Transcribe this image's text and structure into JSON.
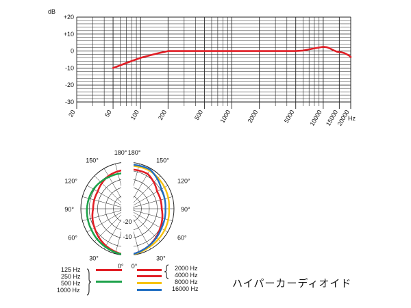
{
  "chart_data": [
    {
      "type": "line",
      "xscale": "log",
      "xlim": [
        20,
        20000
      ],
      "ylim": [
        -30,
        20
      ],
      "ylabel": "dB",
      "xunit": "Hz",
      "y_ticks": [
        "+20",
        "+10",
        "0",
        "-10",
        "-20",
        "-30"
      ],
      "x_ticks": [
        "20",
        "50",
        "100",
        "200",
        "500",
        "1000",
        "2000",
        "5000",
        "10000",
        "15000",
        "20000"
      ],
      "series": [
        {
          "color": "#e11f26",
          "x": [
            50,
            70,
            100,
            150,
            200,
            300,
            500,
            1000,
            2000,
            5000,
            6000,
            7000,
            8000,
            10000,
            11000,
            12000,
            13000,
            14000,
            15000,
            16000,
            17000,
            18000,
            19000,
            20000
          ],
          "y": [
            -10,
            -7,
            -4,
            -1.5,
            0,
            0,
            0,
            0,
            0,
            0,
            0.3,
            1,
            1.6,
            2.5,
            2.2,
            1.4,
            0.4,
            -0.3,
            -0.6,
            -0.8,
            -1.2,
            -1.8,
            -2.5,
            -3.5
          ]
        }
      ]
    },
    {
      "type": "polar",
      "angle_labels": [
        "180°",
        "150°",
        "120°",
        "90°",
        "60°",
        "30°",
        "0°"
      ],
      "radial_labels": [
        "-20",
        "-10"
      ],
      "series": [
        {
          "name": "125 Hz",
          "color": "#e11f26",
          "side": "left",
          "angles": [
            0,
            30,
            60,
            90,
            120,
            150,
            180
          ],
          "db": [
            0,
            -3,
            -7,
            -10,
            -10,
            -7,
            -6
          ]
        },
        {
          "name": "250 Hz",
          "color": "#e11f26",
          "side": "left",
          "angles": [
            0,
            30,
            60,
            90,
            120,
            150,
            180
          ],
          "db": [
            0,
            -3,
            -7,
            -10,
            -10,
            -7,
            -6
          ]
        },
        {
          "name": "500 Hz",
          "color": "#1da24a",
          "side": "left",
          "angles": [
            0,
            30,
            60,
            90,
            120,
            150,
            180
          ],
          "db": [
            0,
            -2,
            -4,
            -5,
            -6,
            -8,
            -9
          ]
        },
        {
          "name": "1000 Hz",
          "color": "#1da24a",
          "side": "left",
          "angles": [
            0,
            30,
            60,
            90,
            120,
            150,
            180
          ],
          "db": [
            0,
            -2,
            -4,
            -5,
            -6,
            -8,
            -9
          ]
        },
        {
          "name": "2000 Hz",
          "color": "#e11f26",
          "side": "right",
          "angles": [
            0,
            30,
            60,
            90,
            120,
            150,
            180
          ],
          "db": [
            0,
            -3,
            -7,
            -10,
            -10,
            -5,
            -6
          ]
        },
        {
          "name": "4000 Hz",
          "color": "#e11f26",
          "side": "right",
          "angles": [
            0,
            30,
            60,
            90,
            120,
            150,
            180
          ],
          "db": [
            0,
            -3,
            -7,
            -10,
            -10,
            -5,
            -6
          ]
        },
        {
          "name": "8000 Hz",
          "color": "#f7c20f",
          "side": "right",
          "angles": [
            0,
            30,
            60,
            90,
            120,
            150,
            180
          ],
          "db": [
            0,
            -2,
            -3,
            -4,
            -3,
            -2,
            -3
          ]
        },
        {
          "name": "16000 Hz",
          "color": "#1f6dc2",
          "side": "right",
          "angles": [
            0,
            30,
            60,
            90,
            120,
            150,
            180
          ],
          "db": [
            0,
            -3,
            -6,
            -7,
            -6,
            -1,
            -2
          ]
        }
      ]
    }
  ],
  "legend": {
    "left": {
      "labels": [
        "125 Hz",
        "250 Hz",
        "500 Hz",
        "1000 Hz"
      ],
      "colors": [
        "#e11f26",
        "#1da24a"
      ]
    },
    "right": {
      "labels": [
        "2000 Hz",
        "4000 Hz",
        "8000 Hz",
        "16000 Hz"
      ],
      "colors": [
        "#e11f26",
        "#e11f26",
        "#f7c20f",
        "#1f6dc2"
      ]
    }
  },
  "caption": "ハイパーカーディオイド"
}
